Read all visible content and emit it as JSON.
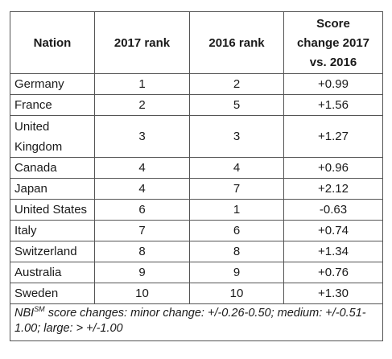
{
  "table": {
    "headers": {
      "nation": "Nation",
      "rank_2017": "2017 rank",
      "rank_2016": "2016 rank",
      "score_change_line1": "Score",
      "score_change_line2": "change 2017",
      "score_change_line3": "vs. 2016"
    },
    "rows": [
      {
        "nation": "Germany",
        "rank_2017": "1",
        "rank_2016": "2",
        "score_change": "+0.99"
      },
      {
        "nation": "France",
        "rank_2017": "2",
        "rank_2016": "5",
        "score_change": "+1.56"
      },
      {
        "nation_line1": "United",
        "nation_line2": "Kingdom",
        "rank_2017": "3",
        "rank_2016": "3",
        "score_change": "+1.27"
      },
      {
        "nation": "Canada",
        "rank_2017": "4",
        "rank_2016": "4",
        "score_change": "+0.96"
      },
      {
        "nation": "Japan",
        "rank_2017": "4",
        "rank_2016": "7",
        "score_change": "+2.12"
      },
      {
        "nation": "United States",
        "rank_2017": "6",
        "rank_2016": "1",
        "score_change": "-0.63"
      },
      {
        "nation": "Italy",
        "rank_2017": "7",
        "rank_2016": "6",
        "score_change": "+0.74"
      },
      {
        "nation": "Switzerland",
        "rank_2017": "8",
        "rank_2016": "8",
        "score_change": "+1.34"
      },
      {
        "nation": "Australia",
        "rank_2017": "9",
        "rank_2016": "9",
        "score_change": "+0.76"
      },
      {
        "nation": "Sweden",
        "rank_2017": "10",
        "rank_2016": "10",
        "score_change": "+1.30"
      }
    ],
    "footnote": {
      "prefix": "NBI",
      "superscript": "SM",
      "text": " score changes: minor change: +/-0.26-0.50; medium: +/-0.51-1.00; large: > +/-1.00"
    }
  }
}
